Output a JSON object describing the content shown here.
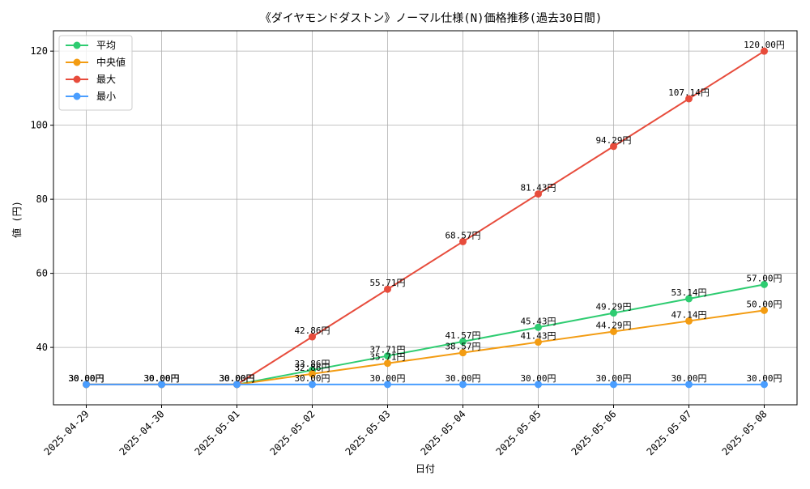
{
  "chart_data": {
    "type": "line",
    "title": "《ダイヤモンドダストン》ノーマル仕様(N)価格推移(過去30日間)",
    "xlabel": "日付",
    "ylabel": "値 (円)",
    "categories": [
      "2025-04-29",
      "2025-04-30",
      "2025-05-01",
      "2025-05-02",
      "2025-05-03",
      "2025-05-04",
      "2025-05-05",
      "2025-05-06",
      "2025-05-07",
      "2025-05-08"
    ],
    "ylim": [
      24.5,
      125.5
    ],
    "yticks": [
      40,
      60,
      80,
      100,
      120
    ],
    "grid": true,
    "legend_position": "top-left",
    "label_suffix": "円",
    "series": [
      {
        "name": "平均",
        "color": "#2ecc71",
        "values": [
          30.0,
          30.0,
          30.0,
          33.86,
          37.71,
          41.57,
          45.43,
          49.29,
          53.14,
          57.0
        ],
        "labels": [
          "30.00円",
          "30.00円",
          "30.00円",
          "33.86円",
          "37.71円",
          "41.57円",
          "45.43円",
          "49.29円",
          "53.14円",
          "57.00円"
        ]
      },
      {
        "name": "中央値",
        "color": "#f39c12",
        "values": [
          30.0,
          30.0,
          30.0,
          32.86,
          35.71,
          38.57,
          41.43,
          44.29,
          47.14,
          50.0
        ],
        "labels": [
          "30.00円",
          "30.00円",
          "30.00円",
          "32.86円",
          "35.71円",
          "38.57円",
          "41.43円",
          "44.29円",
          "47.14円",
          "50.00円"
        ]
      },
      {
        "name": "最大",
        "color": "#e74c3c",
        "values": [
          30.0,
          30.0,
          30.0,
          42.86,
          55.71,
          68.57,
          81.43,
          94.29,
          107.14,
          120.0
        ],
        "labels": [
          "30.00円",
          "30.00円",
          "30.00円",
          "42.86円",
          "55.71円",
          "68.57円",
          "81.43円",
          "94.29円",
          "107.14円",
          "120.00円"
        ]
      },
      {
        "name": "最小",
        "color": "#4a9eff",
        "values": [
          30.0,
          30.0,
          30.0,
          30.0,
          30.0,
          30.0,
          30.0,
          30.0,
          30.0,
          30.0
        ],
        "labels": [
          "30.00円",
          "30.00円",
          "30.00円",
          "30.00円",
          "30.00円",
          "30.00円",
          "30.00円",
          "30.00円",
          "30.00円",
          "30.00円"
        ]
      }
    ]
  }
}
